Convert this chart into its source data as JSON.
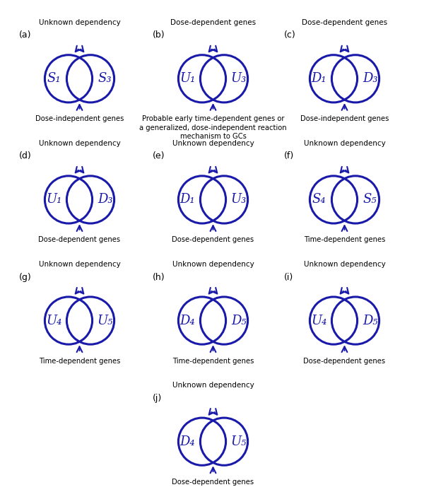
{
  "panels": [
    {
      "label": "a",
      "left_text": "S₁",
      "right_text": "S₃",
      "top_label": "Unknown dependency",
      "bottom_label": "Dose-independent genes"
    },
    {
      "label": "b",
      "left_text": "U₁",
      "right_text": "U₃",
      "top_label": "Dose-dependent genes",
      "bottom_label": "Probable early time-dependent genes or\na generalized, dose-independent reaction\nmechanism to GCs"
    },
    {
      "label": "c",
      "left_text": "D₁",
      "right_text": "D₃",
      "top_label": "Dose-dependent genes",
      "bottom_label": "Dose-independent genes"
    },
    {
      "label": "d",
      "left_text": "U₁",
      "right_text": "D₃",
      "top_label": "Unknown dependency",
      "bottom_label": "Dose-dependent genes"
    },
    {
      "label": "e",
      "left_text": "D₁",
      "right_text": "U₃",
      "top_label": "Unknown dependency",
      "bottom_label": "Dose-dependent genes"
    },
    {
      "label": "f",
      "left_text": "S₄",
      "right_text": "S₅",
      "top_label": "Unknown dependency",
      "bottom_label": "Time-dependent genes"
    },
    {
      "label": "g",
      "left_text": "U₄",
      "right_text": "U₅",
      "top_label": "Unknown dependency",
      "bottom_label": "Time-dependent genes"
    },
    {
      "label": "h",
      "left_text": "D₄",
      "right_text": "D₅",
      "top_label": "Unknown dependency",
      "bottom_label": "Time-dependent genes"
    },
    {
      "label": "i",
      "left_text": "U₄",
      "right_text": "D₅",
      "top_label": "Unknown dependency",
      "bottom_label": "Dose-dependent genes"
    },
    {
      "label": "j",
      "left_text": "D₄",
      "right_text": "U₅",
      "top_label": "Unknown dependency",
      "bottom_label": "Dose-dependent genes"
    }
  ],
  "circle_color": "#1a1aaa",
  "arrow_color": "#1a1aaa",
  "text_color": "#1a1aaa",
  "bg_color": "white"
}
